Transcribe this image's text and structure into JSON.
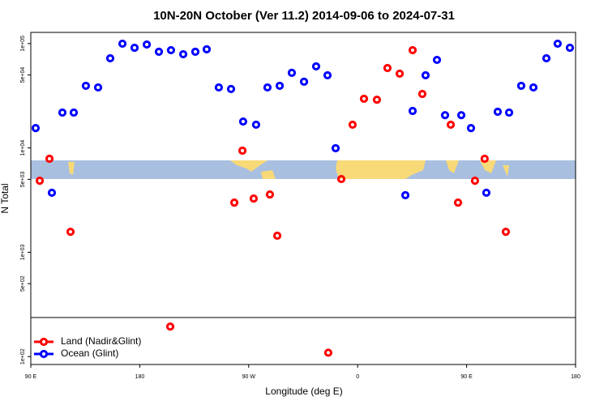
{
  "chart_data": {
    "type": "scatter",
    "title": "10N-20N October (Ver 11.2)   2014-09-06 to 2024-07-31",
    "x_label": "Longitude (deg E)",
    "y_label": "N Total",
    "log_y": true,
    "legend": "bottom-left",
    "xlim": [
      90,
      540
    ],
    "ylim": [
      84,
      128000
    ],
    "xticks": [
      {
        "value": 90,
        "label": "90 E"
      },
      {
        "value": 180,
        "label": "180"
      },
      {
        "value": 270,
        "label": "90 W"
      },
      {
        "value": 360,
        "label": "0"
      },
      {
        "value": 450,
        "label": "90 E"
      },
      {
        "value": 540,
        "label": "180"
      }
    ],
    "yticks": [
      {
        "value": 100,
        "label": "1e+02"
      },
      {
        "value": 500,
        "label": "5e+02"
      },
      {
        "value": 1000,
        "label": "1e+03"
      },
      {
        "value": 5000,
        "label": "5e+03"
      },
      {
        "value": 10000,
        "label": "1e+04"
      },
      {
        "value": 50000,
        "label": "5e+04"
      },
      {
        "value": 100000,
        "label": "1e+05"
      }
    ],
    "series": [
      {
        "name": "Land (Nadir&Glint)",
        "color": "#ff0000",
        "x": [
          97.4,
          105.4,
          122.8,
          205.2,
          258.1,
          264.8,
          274.1,
          287.5,
          293.6,
          335.7,
          346.5,
          355.8,
          365.2,
          375.9,
          384.6,
          394.7,
          405.4,
          413.4,
          436.9,
          442.9,
          456.9,
          464.9,
          482.4
        ],
        "values": [
          4850,
          7870,
          1570,
          194,
          2990,
          9420,
          3270,
          3580,
          1440,
          109,
          5030,
          16700,
          29600,
          29000,
          58300,
          51500,
          86500,
          32900,
          16700,
          2990,
          4850,
          7870,
          1570
        ]
      },
      {
        "name": "Ocean (Glint)",
        "color": "#0000ff",
        "x": [
          94,
          107.4,
          116.1,
          125.5,
          135.5,
          145.6,
          155.6,
          165.7,
          175.7,
          185.8,
          195.8,
          205.8,
          215.9,
          225.9,
          235.3,
          245.3,
          255.4,
          265.4,
          276.1,
          285.5,
          295.6,
          305.6,
          315.7,
          325.7,
          335.1,
          341.8,
          399.4,
          405.4,
          416.1,
          425.5,
          432.2,
          445.6,
          453.6,
          466.3,
          475.7,
          485.1,
          495.1,
          505.2,
          515.9,
          525.2,
          535.3
        ],
        "values": [
          15500,
          3720,
          21800,
          21800,
          39400,
          38000,
          72300,
          99800,
          91200,
          98000,
          83500,
          86500,
          79100,
          83500,
          88100,
          38000,
          36700,
          17900,
          16700,
          38000,
          39400,
          52500,
          43100,
          60500,
          49700,
          9930,
          3520,
          22600,
          49700,
          69800,
          20600,
          20600,
          15500,
          3720,
          22200,
          21800,
          39400,
          38000,
          72300,
          99800,
          91200
        ]
      }
    ]
  }
}
